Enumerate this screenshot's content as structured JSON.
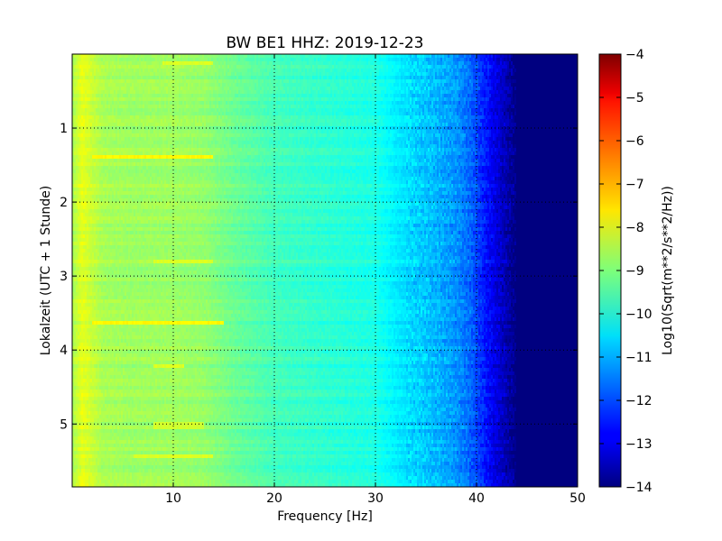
{
  "chart_data": {
    "type": "heatmap",
    "title": "BW BE1 HHZ: 2019-12-23",
    "xlabel": "Frequency [Hz]",
    "ylabel": "Lokalzeit (UTC + 1 Stunde)",
    "xlim": [
      0,
      50
    ],
    "ylim": [
      5.85,
      0
    ],
    "x_ticks": [
      {
        "value": 10,
        "label": "10"
      },
      {
        "value": 20,
        "label": "20"
      },
      {
        "value": 30,
        "label": "30"
      },
      {
        "value": 40,
        "label": "40"
      },
      {
        "value": 50,
        "label": "50"
      }
    ],
    "y_ticks": [
      {
        "value": 1,
        "label": "1"
      },
      {
        "value": 2,
        "label": "2"
      },
      {
        "value": 3,
        "label": "3"
      },
      {
        "value": 4,
        "label": "4"
      },
      {
        "value": 5,
        "label": "5"
      }
    ],
    "grid": true,
    "colormap": "jet",
    "colorbar": {
      "label": "Log10(Sqrt(m**2/s**2/Hz))",
      "range": [
        -14,
        -4
      ],
      "ticks": [
        {
          "value": -4,
          "label": "−4"
        },
        {
          "value": -5,
          "label": "−5"
        },
        {
          "value": -6,
          "label": "−6"
        },
        {
          "value": -7,
          "label": "−7"
        },
        {
          "value": -8,
          "label": "−8"
        },
        {
          "value": -9,
          "label": "−9"
        },
        {
          "value": -10,
          "label": "−10"
        },
        {
          "value": -11,
          "label": "−11"
        },
        {
          "value": -12,
          "label": "−12"
        },
        {
          "value": -13,
          "label": "−13"
        },
        {
          "value": -14,
          "label": "−14"
        }
      ]
    },
    "spectral_profile": [
      {
        "frequency": 0.0,
        "value": -8.6
      },
      {
        "frequency": 1.0,
        "value": -8.0
      },
      {
        "frequency": 2.0,
        "value": -8.3
      },
      {
        "frequency": 3.0,
        "value": -8.6
      },
      {
        "frequency": 6.0,
        "value": -8.7
      },
      {
        "frequency": 10.0,
        "value": -8.7
      },
      {
        "frequency": 13.0,
        "value": -8.8
      },
      {
        "frequency": 16.0,
        "value": -9.2
      },
      {
        "frequency": 20.0,
        "value": -9.6
      },
      {
        "frequency": 25.0,
        "value": -9.8
      },
      {
        "frequency": 30.0,
        "value": -10.0
      },
      {
        "frequency": 32.0,
        "value": -10.4
      },
      {
        "frequency": 35.0,
        "value": -10.8
      },
      {
        "frequency": 38.0,
        "value": -11.3
      },
      {
        "frequency": 39.5,
        "value": -11.8
      },
      {
        "frequency": 41.0,
        "value": -12.6
      },
      {
        "frequency": 42.5,
        "value": -13.3
      },
      {
        "frequency": 44.0,
        "value": -14.0
      },
      {
        "frequency": 50.0,
        "value": -14.0
      }
    ],
    "bright_bands": [
      {
        "time": 1.4,
        "freq_range": [
          2,
          14
        ],
        "value": -7.7
      },
      {
        "time": 3.62,
        "freq_range": [
          2,
          15
        ],
        "value": -7.7
      },
      {
        "time": 2.82,
        "freq_range": [
          8,
          14
        ],
        "value": -8.1
      },
      {
        "time": 0.12,
        "freq_range": [
          9,
          14
        ],
        "value": -8.1
      },
      {
        "time": 4.22,
        "freq_range": [
          8,
          11
        ],
        "value": -8.1
      },
      {
        "time": 5.42,
        "freq_range": [
          6,
          14
        ],
        "value": -8.1
      },
      {
        "time": 5.02,
        "freq_range": [
          8,
          13
        ],
        "value": -8.2
      }
    ]
  }
}
